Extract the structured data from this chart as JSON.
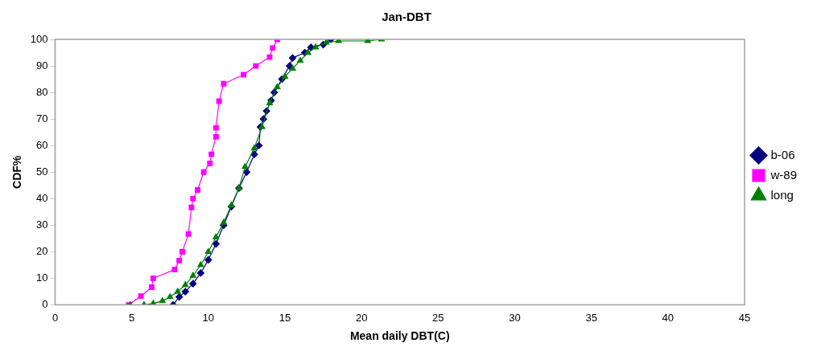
{
  "chart_data": {
    "type": "line",
    "title": "Jan-DBT",
    "xlabel": "Mean daily DBT(C)",
    "ylabel": "CDF%",
    "xlim": [
      0,
      45
    ],
    "xticks": [
      0,
      5,
      10,
      15,
      20,
      25,
      30,
      35,
      40,
      45
    ],
    "ylim": [
      0,
      100
    ],
    "yticks": [
      0,
      10,
      20,
      30,
      40,
      50,
      60,
      70,
      80,
      90,
      100
    ],
    "grid": false,
    "legend": "right",
    "series": [
      {
        "name": "b-06",
        "color": "#000080",
        "marker": "diamond",
        "x": [
          7.7,
          8.1,
          8.5,
          9,
          9.5,
          10,
          10.5,
          11,
          11.5,
          12,
          12.5,
          13,
          13.3,
          13.4,
          13.6,
          13.8,
          14.1,
          14.3,
          14.8,
          15.3,
          15.5,
          16.3,
          16.7,
          17.5,
          18
        ],
        "values": [
          0,
          3,
          5,
          8,
          12,
          17,
          23,
          30,
          37,
          44,
          50,
          56.7,
          60,
          67,
          70,
          73,
          77,
          80,
          85,
          90,
          93,
          95,
          97,
          98,
          100
        ]
      },
      {
        "name": "w-89",
        "color": "#ff00ff",
        "marker": "square",
        "x": [
          4.8,
          5.6,
          6.3,
          6.4,
          7.8,
          8.1,
          8.3,
          8.7,
          8.9,
          9,
          9.3,
          9.7,
          10.1,
          10.2,
          10.5,
          10.5,
          10.7,
          11,
          12.3,
          13.1,
          14,
          14.2,
          14.5
        ],
        "values": [
          0,
          3.3,
          6.7,
          10,
          13.3,
          16.7,
          20,
          26.7,
          36.7,
          40,
          43.3,
          50,
          53.3,
          56.7,
          63.3,
          66.7,
          76.7,
          83.3,
          86.7,
          90,
          93.3,
          96.7,
          100
        ]
      },
      {
        "name": "long",
        "color": "#008000",
        "marker": "triangle",
        "x": [
          4.9,
          5.8,
          6.4,
          7,
          7.5,
          8,
          8.5,
          9,
          9.5,
          10,
          10.5,
          11,
          11.5,
          12,
          12.4,
          13,
          13.5,
          14,
          14.5,
          15,
          15.5,
          16,
          16.5,
          17,
          17.7,
          18.5,
          20.4,
          21.3
        ],
        "values": [
          0,
          0,
          0.5,
          1.5,
          3,
          5,
          7.5,
          11,
          15,
          20,
          25.5,
          31,
          37.5,
          44,
          52,
          59,
          67,
          76,
          82,
          86,
          89,
          92,
          95,
          97,
          98.8,
          99.4,
          99.4,
          100
        ]
      }
    ]
  }
}
